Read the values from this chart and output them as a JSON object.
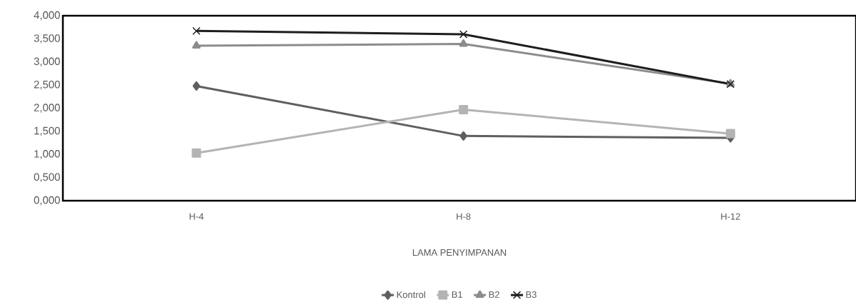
{
  "chart_data": {
    "type": "line",
    "xlabel": "LAMA PENYIMPANAN",
    "categories": [
      "H-4",
      "H-8",
      "H-12"
    ],
    "series": [
      {
        "name": "Kontrol",
        "color": "#5f5f5f",
        "marker": "diamond",
        "values": [
          2.48,
          1.4,
          1.36
        ]
      },
      {
        "name": "B1",
        "color": "#b4b4b4",
        "marker": "square",
        "values": [
          1.03,
          1.97,
          1.45
        ]
      },
      {
        "name": "B2",
        "color": "#8c8c8c",
        "marker": "triangle",
        "values": [
          3.35,
          3.39,
          2.53
        ]
      },
      {
        "name": "B3",
        "color": "#1e1e1e",
        "marker": "cross",
        "values": [
          3.67,
          3.6,
          2.52
        ]
      }
    ],
    "ylim": [
      0,
      4
    ],
    "yticks": [
      {
        "value": 0,
        "label": "0,000"
      },
      {
        "value": 0.5,
        "label": "0,500"
      },
      {
        "value": 1,
        "label": "1,000"
      },
      {
        "value": 1.5,
        "label": "1,500"
      },
      {
        "value": 2,
        "label": "2,000"
      },
      {
        "value": 2.5,
        "label": "2,500"
      },
      {
        "value": 3,
        "label": "3,000"
      },
      {
        "value": 3.5,
        "label": "3,500"
      },
      {
        "value": 4,
        "label": "4,000"
      }
    ],
    "grid": false,
    "legend": "bottom",
    "line_style": "solid"
  }
}
